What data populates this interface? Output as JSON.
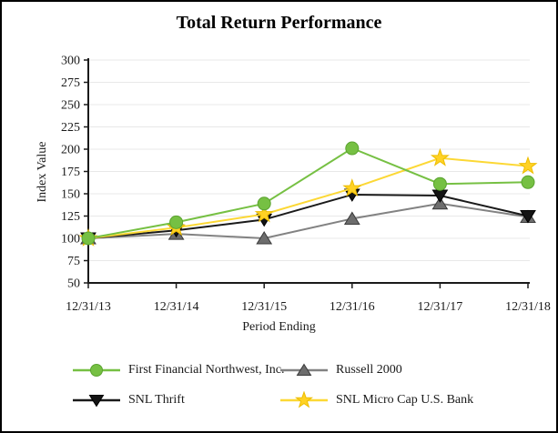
{
  "chart_data": {
    "type": "line",
    "title": "Total Return Performance",
    "xlabel": "Period Ending",
    "ylabel": "Index Value",
    "x": [
      "12/31/13",
      "12/31/14",
      "12/31/15",
      "12/31/16",
      "12/31/17",
      "12/31/18"
    ],
    "ylim": [
      50,
      300
    ],
    "yticks": [
      50,
      75,
      100,
      125,
      150,
      175,
      200,
      225,
      250,
      275,
      300
    ],
    "grid": true,
    "legend_position": "bottom",
    "axis_color": "#1a1a1a",
    "grid_color": "#e8e8e8",
    "series": [
      {
        "name": "First Financial Northwest, Inc.",
        "marker": "circle",
        "color": "#76c043",
        "line_color": "#76c043",
        "edge_color": "#5aa32f",
        "values": [
          100,
          118,
          139,
          201,
          161,
          163
        ]
      },
      {
        "name": "Russell 2000",
        "marker": "triangle-up",
        "color": "#6d6d6d",
        "line_color": "#828282",
        "edge_color": "#3a3a3a",
        "values": [
          100,
          105,
          100,
          122,
          139,
          124
        ]
      },
      {
        "name": "SNL Thrift",
        "marker": "triangle-down",
        "color": "#141414",
        "line_color": "#1a1a1a",
        "edge_color": "#000000",
        "values": [
          100,
          109,
          121,
          149,
          148,
          125
        ]
      },
      {
        "name": "SNL Micro Cap U.S. Bank",
        "marker": "star",
        "color": "#ffd224",
        "line_color": "#fcd835",
        "edge_color": "#edbd00",
        "values": [
          100,
          112,
          127,
          156,
          190,
          181
        ]
      }
    ]
  }
}
